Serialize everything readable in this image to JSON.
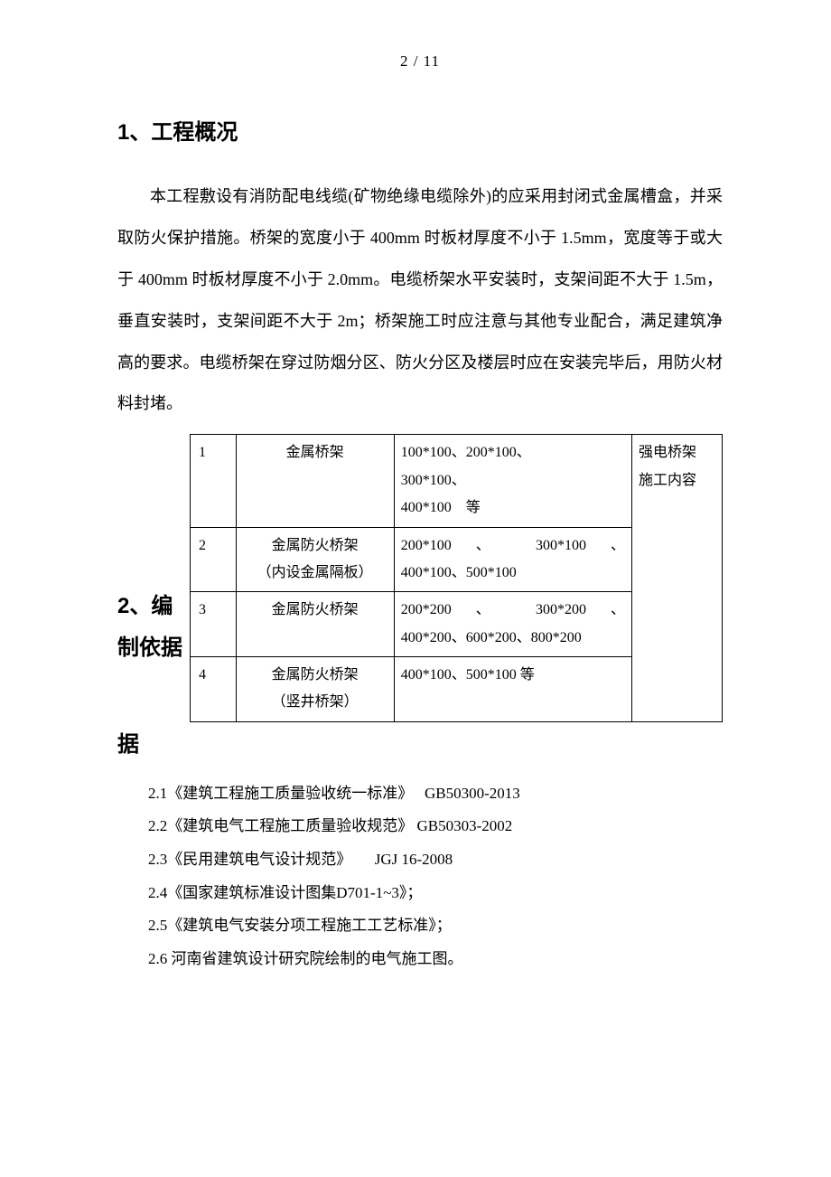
{
  "page_number": "2 / 11",
  "section1": {
    "title": "1、工程概况",
    "paragraph": "本工程敷设有消防配电线缆(矿物绝缘电缆除外)的应采用封闭式金属槽盒，并采取防火保护措施。桥架的宽度小于 400mm 时板材厚度不小于 1.5mm，宽度等于或大于 400mm 时板材厚度不小于 2.0mm。电缆桥架水平安装时，支架间距不大于 1.5m，垂直安装时，支架间距不大于 2m；桥架施工时应注意与其他专业配合，满足建筑净高的要求。电缆桥架在穿过防烟分区、防火分区及楼层时应在安装完毕后，用防火材料封堵。"
  },
  "section2": {
    "title": "2、编制依据",
    "rows": [
      {
        "idx": "1",
        "name": "金属桥架",
        "spec_lines": [
          "100*100、200*100、",
          "300*100、",
          "400*100　等"
        ]
      },
      {
        "idx": "2",
        "name_lines": [
          "金属防火桥架",
          "（内设金属隔板）"
        ],
        "spec_lines": [
          "200*100 、 300*100 、",
          "400*100、500*100"
        ]
      },
      {
        "idx": "3",
        "name": "金属防火桥架",
        "spec_lines": [
          "200*200 、 300*200 、",
          "400*200、600*200、800*200"
        ]
      },
      {
        "idx": "4",
        "name_lines": [
          "金属防火桥架",
          "（竖井桥架）"
        ],
        "spec_lines": [
          "400*100、500*100 等"
        ]
      }
    ],
    "right_note_lines": [
      "强电桥架",
      "施工内容"
    ]
  },
  "section2_continue": "据",
  "refs": [
    "2.1《建筑工程施工质量验收统一标准》　 GB50300-2013",
    "2.2《建筑电气工程施工质量验收规范》  GB50303-2002",
    "2.3《民用建筑电气设计规范》　　JGJ 16-2008",
    "2.4《国家建筑标准设计图集D701-1~3》；",
    "2.5《建筑电气安装分项工程施工工艺标准》；",
    "2.6 河南省建筑设计研究院绘制的电气施工图。"
  ],
  "colors": {
    "text": "#000000",
    "background": "#ffffff",
    "border": "#000000"
  },
  "typography": {
    "heading_font": "SimHei",
    "body_font": "SimSun",
    "heading_fontsize": 24,
    "body_fontsize": 18,
    "table_fontsize": 16,
    "ref_fontsize": 17
  }
}
